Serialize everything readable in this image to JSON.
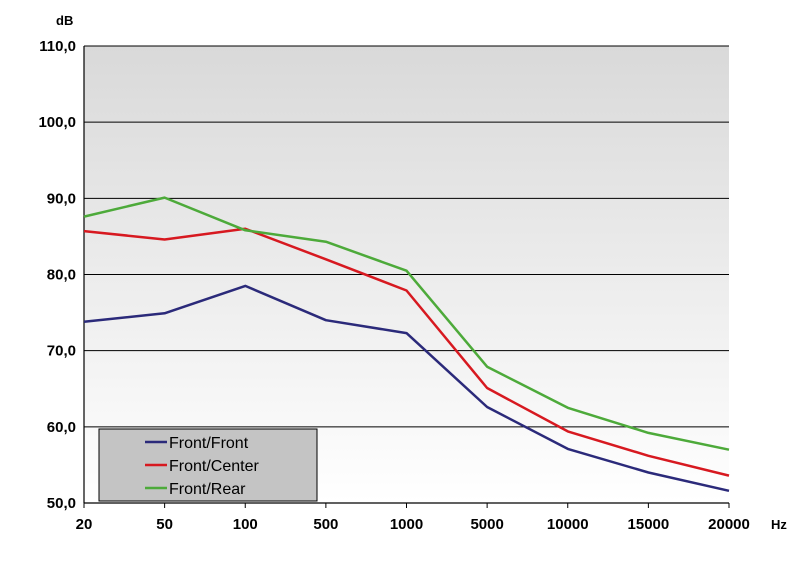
{
  "chart_data": {
    "type": "line",
    "title": "",
    "xlabel": "Hz",
    "ylabel": "dB",
    "categories": [
      "20",
      "50",
      "100",
      "500",
      "1000",
      "5000",
      "10000",
      "15000",
      "20000"
    ],
    "y_ticks": [
      "50,0",
      "60,0",
      "70,0",
      "80,0",
      "90,0",
      "100,0",
      "110,0"
    ],
    "ylim": [
      50,
      110
    ],
    "grid": true,
    "legend_position": "bottom-left",
    "series": [
      {
        "name": "Front/Front",
        "color": "#2b2a7a",
        "values": [
          73.8,
          74.9,
          78.5,
          74.0,
          72.3,
          62.6,
          57.1,
          54.0,
          51.6
        ]
      },
      {
        "name": "Front/Center",
        "color": "#d71920",
        "values": [
          85.7,
          84.6,
          86.0,
          82.0,
          77.9,
          65.1,
          59.4,
          56.2,
          53.6
        ]
      },
      {
        "name": "Front/Rear",
        "color": "#4daa3a",
        "values": [
          87.6,
          90.1,
          85.8,
          84.3,
          80.5,
          67.9,
          62.5,
          59.2,
          57.0
        ]
      }
    ]
  }
}
